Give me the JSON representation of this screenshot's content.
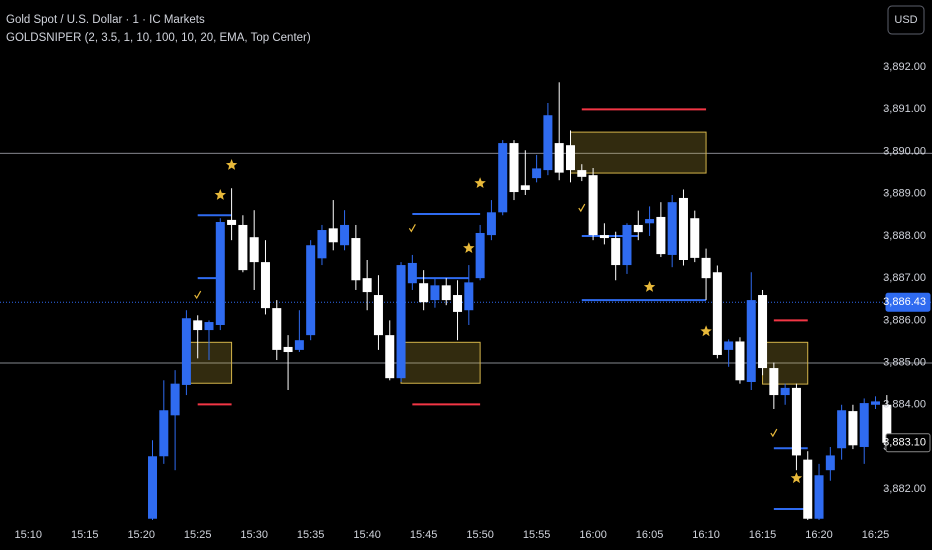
{
  "chart_data": {
    "type": "candlestick",
    "title": "Gold Spot / U.S. Dollar · 1 · IC Markets",
    "indicator": "GOLDSNIPER (2, 3.5, 1, 10, 100, 10, 20, EMA, Top Center)",
    "currency_button": "USD",
    "up_color": "#2f6bf0",
    "down_color": "#ffffff",
    "x": [
      "15:21",
      "15:22",
      "15:23",
      "15:24",
      "15:25",
      "15:26",
      "15:27",
      "15:28",
      "15:29",
      "15:30",
      "15:31",
      "15:32",
      "15:33",
      "15:34",
      "15:35",
      "15:36",
      "15:37",
      "15:38",
      "15:39",
      "15:40",
      "15:41",
      "15:42",
      "15:43",
      "15:44",
      "15:45",
      "15:46",
      "15:47",
      "15:48",
      "15:49",
      "15:50",
      "15:51",
      "15:52",
      "15:53",
      "15:54",
      "15:55",
      "15:56",
      "15:57",
      "15:58",
      "15:59",
      "16:00",
      "16:01",
      "16:02",
      "16:03",
      "16:04",
      "16:05",
      "16:06",
      "16:07",
      "16:08",
      "16:09",
      "16:10",
      "16:11",
      "16:12",
      "16:13",
      "16:14",
      "16:15",
      "16:16",
      "16:17",
      "16:18",
      "16:19",
      "16:20",
      "16:21",
      "16:22",
      "16:23",
      "16:24",
      "16:25",
      "16:26"
    ],
    "open": [
      3881.3,
      3882.78,
      3883.75,
      3884.47,
      3886.0,
      3885.77,
      3885.89,
      3888.38,
      3888.26,
      3887.97,
      3887.38,
      3886.29,
      3885.37,
      3885.3,
      3885.65,
      3887.47,
      3888.18,
      3887.78,
      3887.95,
      3887.0,
      3886.6,
      3885.65,
      3884.63,
      3886.88,
      3886.88,
      3886.48,
      3886.83,
      3886.6,
      3886.24,
      3887.0,
      3888.02,
      3888.56,
      3890.2,
      3889.2,
      3889.37,
      3889.56,
      3890.2,
      3890.15,
      3889.56,
      3889.44,
      3888.02,
      3887.95,
      3887.31,
      3888.26,
      3888.3,
      3888.45,
      3887.55,
      3888.9,
      3888.42,
      3887.48,
      3887.14,
      3885.3,
      3885.5,
      3884.54,
      3886.6,
      3884.87,
      3884.23,
      3884.4,
      3882.7,
      3881.3,
      3882.45,
      3882.97,
      3883.85,
      3883.0,
      3884.0,
      3884.0
    ],
    "high": [
      3883.16,
      3884.58,
      3884.82,
      3886.24,
      3886.12,
      3886.0,
      3888.42,
      3889.13,
      3888.49,
      3888.61,
      3887.9,
      3886.48,
      3885.65,
      3886.24,
      3887.9,
      3888.26,
      3888.85,
      3888.61,
      3888.26,
      3887.43,
      3887.07,
      3886.0,
      3887.38,
      3887.55,
      3887.19,
      3887.0,
      3887.0,
      3886.95,
      3887.31,
      3888.26,
      3888.85,
      3890.27,
      3890.27,
      3890.03,
      3889.92,
      3891.15,
      3891.64,
      3890.5,
      3889.7,
      3889.61,
      3888.3,
      3888.1,
      3888.3,
      3888.6,
      3888.7,
      3888.8,
      3888.97,
      3889.1,
      3888.6,
      3887.7,
      3887.3,
      3885.55,
      3885.6,
      3887.14,
      3886.72,
      3885.0,
      3884.5,
      3884.5,
      3882.9,
      3882.6,
      3883.0,
      3884.0,
      3884.0,
      3884.15,
      3884.2,
      3884.23
    ],
    "low": [
      3881.27,
      3882.6,
      3882.45,
      3884.23,
      3885.1,
      3885.06,
      3885.77,
      3887.9,
      3887.14,
      3886.72,
      3886.14,
      3885.06,
      3884.35,
      3885.25,
      3885.53,
      3887.31,
      3887.66,
      3887.66,
      3886.72,
      3886.24,
      3885.3,
      3884.58,
      3884.54,
      3886.72,
      3886.24,
      3886.3,
      3886.36,
      3885.53,
      3885.89,
      3886.95,
      3887.9,
      3888.49,
      3888.85,
      3888.97,
      3889.27,
      3889.44,
      3889.32,
      3889.27,
      3889.3,
      3887.9,
      3887.8,
      3886.95,
      3887.1,
      3887.9,
      3888.0,
      3887.5,
      3887.26,
      3887.3,
      3887.38,
      3886.48,
      3885.1,
      3884.9,
      3884.5,
      3884.35,
      3884.7,
      3883.9,
      3884.0,
      3882.45,
      3881.27,
      3881.27,
      3882.2,
      3882.7,
      3882.95,
      3882.6,
      3883.9,
      3883.1
    ],
    "close": [
      3882.78,
      3883.87,
      3884.5,
      3886.05,
      3885.77,
      3885.96,
      3888.33,
      3888.26,
      3887.19,
      3887.38,
      3886.29,
      3885.3,
      3885.25,
      3885.53,
      3887.78,
      3888.14,
      3887.85,
      3888.26,
      3886.95,
      3886.67,
      3885.65,
      3884.63,
      3887.31,
      3887.36,
      3886.43,
      3886.83,
      3886.48,
      3886.2,
      3886.9,
      3888.07,
      3888.56,
      3890.2,
      3889.04,
      3889.09,
      3889.6,
      3890.86,
      3889.5,
      3889.56,
      3889.4,
      3888.02,
      3887.95,
      3887.31,
      3888.26,
      3888.09,
      3888.4,
      3887.57,
      3888.8,
      3887.43,
      3887.48,
      3887.0,
      3885.18,
      3885.5,
      3884.58,
      3886.48,
      3884.87,
      3884.23,
      3884.4,
      3882.8,
      3881.3,
      3882.33,
      3882.8,
      3883.87,
      3883.04,
      3884.04,
      3884.08,
      3883.1
    ],
    "xlim": [
      "15:07:30",
      "16:30:00"
    ],
    "xticks": [
      "15:10",
      "15:15",
      "15:20",
      "15:25",
      "15:30",
      "15:35",
      "15:40",
      "15:45",
      "15:50",
      "15:55",
      "16:00",
      "16:05",
      "16:10",
      "16:15",
      "16:20",
      "16:25"
    ],
    "ylim": [
      3881.27,
      3893.59
    ],
    "yticks": [
      {
        "value": 3882,
        "label": "3,882.00"
      },
      {
        "value": 3883,
        "label": "3,883.00"
      },
      {
        "value": 3884,
        "label": "3,884.00"
      },
      {
        "value": 3885,
        "label": "3,885.00"
      },
      {
        "value": 3886,
        "label": "3,886.00"
      },
      {
        "value": 3887,
        "label": "3,887.00"
      },
      {
        "value": 3888,
        "label": "3,888.00"
      },
      {
        "value": 3889,
        "label": "3,889.00"
      },
      {
        "value": 3890,
        "label": "3,890.00"
      },
      {
        "value": 3891,
        "label": "3,891.00"
      },
      {
        "value": 3892,
        "label": "3,892.00"
      }
    ],
    "current_price": {
      "value": 3886.43,
      "label": "3,886.43"
    },
    "last_price": {
      "value": 3883.1,
      "label": "3,883.10"
    },
    "hlines": [
      3889.96,
      3884.99
    ],
    "zones": [
      {
        "start": "15:24",
        "end": "15:28",
        "top": 3885.48,
        "bottom": 3884.51
      },
      {
        "start": "15:43",
        "end": "15:50",
        "top": 3885.48,
        "bottom": 3884.51
      },
      {
        "start": "15:58",
        "end": "16:10",
        "top": 3890.46,
        "bottom": 3889.49
      },
      {
        "start": "16:15",
        "end": "16:19",
        "top": 3885.48,
        "bottom": 3884.49
      }
    ],
    "segments": [
      {
        "start": "15:25",
        "end": "15:28",
        "value": 3888.49,
        "color": "#2f6bf0"
      },
      {
        "start": "15:25",
        "end": "15:27",
        "value": 3887.0,
        "color": "#2f6bf0"
      },
      {
        "start": "15:25",
        "end": "15:28",
        "value": 3884.01,
        "color": "#f23645"
      },
      {
        "start": "15:44",
        "end": "15:50",
        "value": 3888.52,
        "color": "#2f6bf0"
      },
      {
        "start": "15:44",
        "end": "15:49",
        "value": 3887.0,
        "color": "#2f6bf0"
      },
      {
        "start": "15:44",
        "end": "15:50",
        "value": 3884.01,
        "color": "#f23645"
      },
      {
        "start": "15:59",
        "end": "16:10",
        "value": 3891.0,
        "color": "#f23645"
      },
      {
        "start": "15:59",
        "end": "16:04",
        "value": 3888.0,
        "color": "#2f6bf0"
      },
      {
        "start": "15:59",
        "end": "16:10",
        "value": 3886.48,
        "color": "#2f6bf0"
      },
      {
        "start": "16:16",
        "end": "16:19",
        "value": 3886.0,
        "color": "#f23645"
      },
      {
        "start": "16:16",
        "end": "16:19",
        "value": 3882.97,
        "color": "#2f6bf0"
      },
      {
        "start": "16:16",
        "end": "16:19",
        "value": 3881.53,
        "color": "#2f6bf0"
      }
    ],
    "stars": [
      {
        "x": "15:28",
        "value": 3889.68
      },
      {
        "x": "15:27",
        "value": 3888.97
      },
      {
        "x": "15:49",
        "value": 3887.71
      },
      {
        "x": "15:50",
        "value": 3889.25
      },
      {
        "x": "16:05",
        "value": 3886.79
      },
      {
        "x": "16:10",
        "value": 3885.74
      },
      {
        "x": "16:18",
        "value": 3882.26
      }
    ],
    "checks": [
      {
        "x": "15:25",
        "value": 3886.6
      },
      {
        "x": "15:44",
        "value": 3888.18
      },
      {
        "x": "15:59",
        "value": 3888.66
      },
      {
        "x": "16:16",
        "value": 3883.33
      }
    ]
  }
}
